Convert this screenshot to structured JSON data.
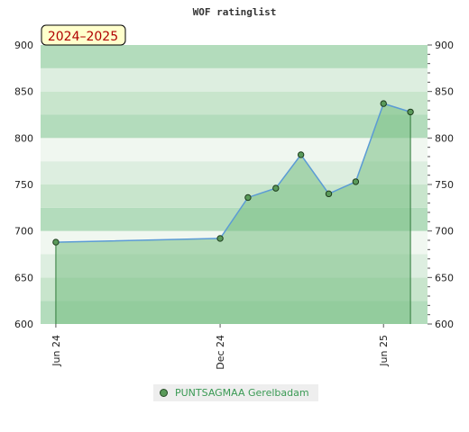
{
  "chart_data": {
    "type": "area",
    "title": "WOF ratinglist",
    "badge": "2024–2025",
    "y_ticks": [
      600,
      650,
      700,
      750,
      800,
      850,
      900
    ],
    "ylim": [
      600,
      900
    ],
    "x_ticks": [
      "Jun 24",
      "Dec 24",
      "Jun 25"
    ],
    "x_tick_dates": [
      "2024-06-01",
      "2024-12-01",
      "2025-06-01"
    ],
    "xlim": [
      "2024-05-15",
      "2025-07-20"
    ],
    "band_colors": [
      "#f0f7f0",
      "#ddeee0",
      "#c8e5cc",
      "#b3dcbc"
    ],
    "area_color": "#78bf84",
    "line_color": "#5b9bd5",
    "marker_color": "#5a9a5a",
    "series": [
      {
        "name": "PUNTSAGMAA Gerelbadam",
        "points": [
          {
            "x": "2024-06-01",
            "y": 688
          },
          {
            "x": "2024-12-01",
            "y": 692
          },
          {
            "x": "2025-01-01",
            "y": 736
          },
          {
            "x": "2025-02-01",
            "y": 746
          },
          {
            "x": "2025-03-01",
            "y": 782
          },
          {
            "x": "2025-04-01",
            "y": 740
          },
          {
            "x": "2025-05-01",
            "y": 753
          },
          {
            "x": "2025-06-01",
            "y": 837
          },
          {
            "x": "2025-07-01",
            "y": 828
          }
        ]
      }
    ]
  }
}
